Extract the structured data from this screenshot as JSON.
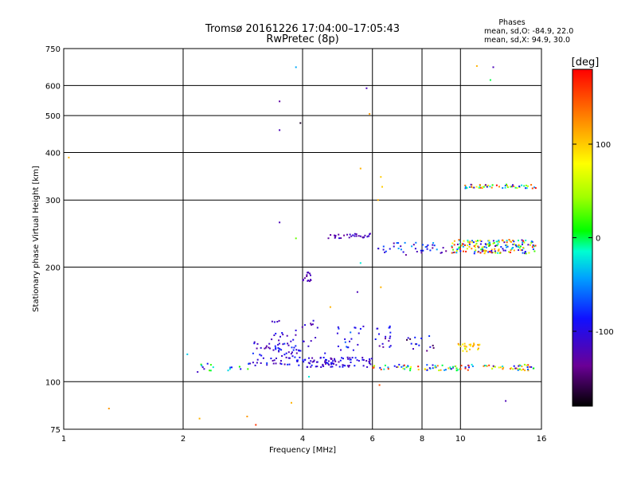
{
  "chart_data": {
    "type": "scatter",
    "title": "Tromsø 20161226 17:04:00–17:05:43",
    "subtitle": "RwPretec (8p)",
    "xlabel": "Frequency [MHz]",
    "ylabel": "Stationary phase Virtual Height [km]",
    "xscale": "log",
    "yscale": "log",
    "xlim": [
      1,
      16
    ],
    "ylim": [
      75,
      750
    ],
    "x_ticks": [
      1,
      2,
      4,
      6,
      8,
      10,
      16
    ],
    "y_ticks": [
      75,
      100,
      200,
      300,
      400,
      500,
      600,
      750
    ],
    "grid": true,
    "legend": {
      "title": "Phases",
      "lines": [
        "mean, sd,O: -84.9, 22.0",
        "mean, sd,X:  94.9, 30.0"
      ],
      "position": "top-right"
    },
    "colorbar": {
      "label": "[deg]",
      "range": [
        -180,
        180
      ],
      "ticks": [
        -100,
        0,
        100
      ]
    },
    "groups": [
      {
        "x_range": [
          2.15,
          3.0
        ],
        "y_range": [
          106,
          112
        ],
        "count": 20,
        "phase_range": [
          -120,
          20
        ]
      },
      {
        "x_range": [
          3.0,
          4.0
        ],
        "y_range": [
          110,
          128
        ],
        "count": 70,
        "phase_range": [
          -130,
          -70
        ]
      },
      {
        "x_range": [
          4.0,
          6.0
        ],
        "y_range": [
          109,
          116
        ],
        "count": 90,
        "phase_range": [
          -130,
          -80
        ]
      },
      {
        "x_range": [
          6.0,
          15.5
        ],
        "y_range": [
          107,
          111
        ],
        "count": 110,
        "phase_range": [
          -130,
          180
        ]
      },
      {
        "x_range": [
          3.3,
          4.6
        ],
        "y_range": [
          118,
          145
        ],
        "count": 35,
        "phase_range": [
          -140,
          -80
        ]
      },
      {
        "x_range": [
          4.9,
          5.7
        ],
        "y_range": [
          120,
          140
        ],
        "count": 20,
        "phase_range": [
          -130,
          -60
        ]
      },
      {
        "x_range": [
          6.1,
          6.7
        ],
        "y_range": [
          123,
          140
        ],
        "count": 18,
        "phase_range": [
          -140,
          -80
        ]
      },
      {
        "x_range": [
          7.3,
          8.6
        ],
        "y_range": [
          120,
          132
        ],
        "count": 15,
        "phase_range": [
          -160,
          -70
        ]
      },
      {
        "x_range": [
          9.8,
          11.3
        ],
        "y_range": [
          120,
          126
        ],
        "count": 25,
        "phase_range": [
          60,
          130
        ]
      },
      {
        "x_range": [
          9.5,
          15.5
        ],
        "y_range": [
          217,
          236
        ],
        "count": 180,
        "phase_range": [
          -130,
          180
        ]
      },
      {
        "x_range": [
          6.2,
          9.3
        ],
        "y_range": [
          215,
          232
        ],
        "count": 40,
        "phase_range": [
          -140,
          -40
        ]
      },
      {
        "x_range": [
          4.6,
          5.95
        ],
        "y_range": [
          238,
          245
        ],
        "count": 30,
        "phase_range": [
          -140,
          -100
        ]
      },
      {
        "x_range": [
          10.2,
          15.5
        ],
        "y_range": [
          322,
          330
        ],
        "count": 55,
        "phase_range": [
          -140,
          180
        ]
      },
      {
        "x_range": [
          4.0,
          4.2
        ],
        "y_range": [
          183,
          194
        ],
        "count": 15,
        "phase_range": [
          -140,
          -110
        ]
      }
    ],
    "isolated_points": [
      {
        "x": 1.03,
        "y": 388,
        "phase": 110
      },
      {
        "x": 1.3,
        "y": 85,
        "phase": 120
      },
      {
        "x": 2.05,
        "y": 118,
        "phase": -30
      },
      {
        "x": 2.2,
        "y": 80,
        "phase": 110
      },
      {
        "x": 2.9,
        "y": 81,
        "phase": 120
      },
      {
        "x": 3.05,
        "y": 77,
        "phase": 160
      },
      {
        "x": 3.5,
        "y": 545,
        "phase": -130
      },
      {
        "x": 3.5,
        "y": 458,
        "phase": -120
      },
      {
        "x": 3.5,
        "y": 262,
        "phase": -120
      },
      {
        "x": 3.75,
        "y": 88,
        "phase": 110
      },
      {
        "x": 3.85,
        "y": 238,
        "phase": 30
      },
      {
        "x": 3.85,
        "y": 670,
        "phase": -40
      },
      {
        "x": 3.95,
        "y": 478,
        "phase": -170
      },
      {
        "x": 5.6,
        "y": 363,
        "phase": 110
      },
      {
        "x": 5.8,
        "y": 590,
        "phase": -120
      },
      {
        "x": 5.9,
        "y": 505,
        "phase": 120
      },
      {
        "x": 6.25,
        "y": 98,
        "phase": 150
      },
      {
        "x": 6.3,
        "y": 345,
        "phase": 100
      },
      {
        "x": 6.35,
        "y": 325,
        "phase": 100
      },
      {
        "x": 6.2,
        "y": 300,
        "phase": 110
      },
      {
        "x": 11.0,
        "y": 675,
        "phase": 110
      },
      {
        "x": 11.9,
        "y": 620,
        "phase": 0
      },
      {
        "x": 12.1,
        "y": 670,
        "phase": -120
      },
      {
        "x": 13.0,
        "y": 89,
        "phase": -120
      },
      {
        "x": 5.6,
        "y": 205,
        "phase": -20
      },
      {
        "x": 5.5,
        "y": 172,
        "phase": -120
      },
      {
        "x": 6.3,
        "y": 177,
        "phase": 110
      },
      {
        "x": 4.7,
        "y": 157,
        "phase": 110
      },
      {
        "x": 4.15,
        "y": 103,
        "phase": -20
      }
    ]
  }
}
